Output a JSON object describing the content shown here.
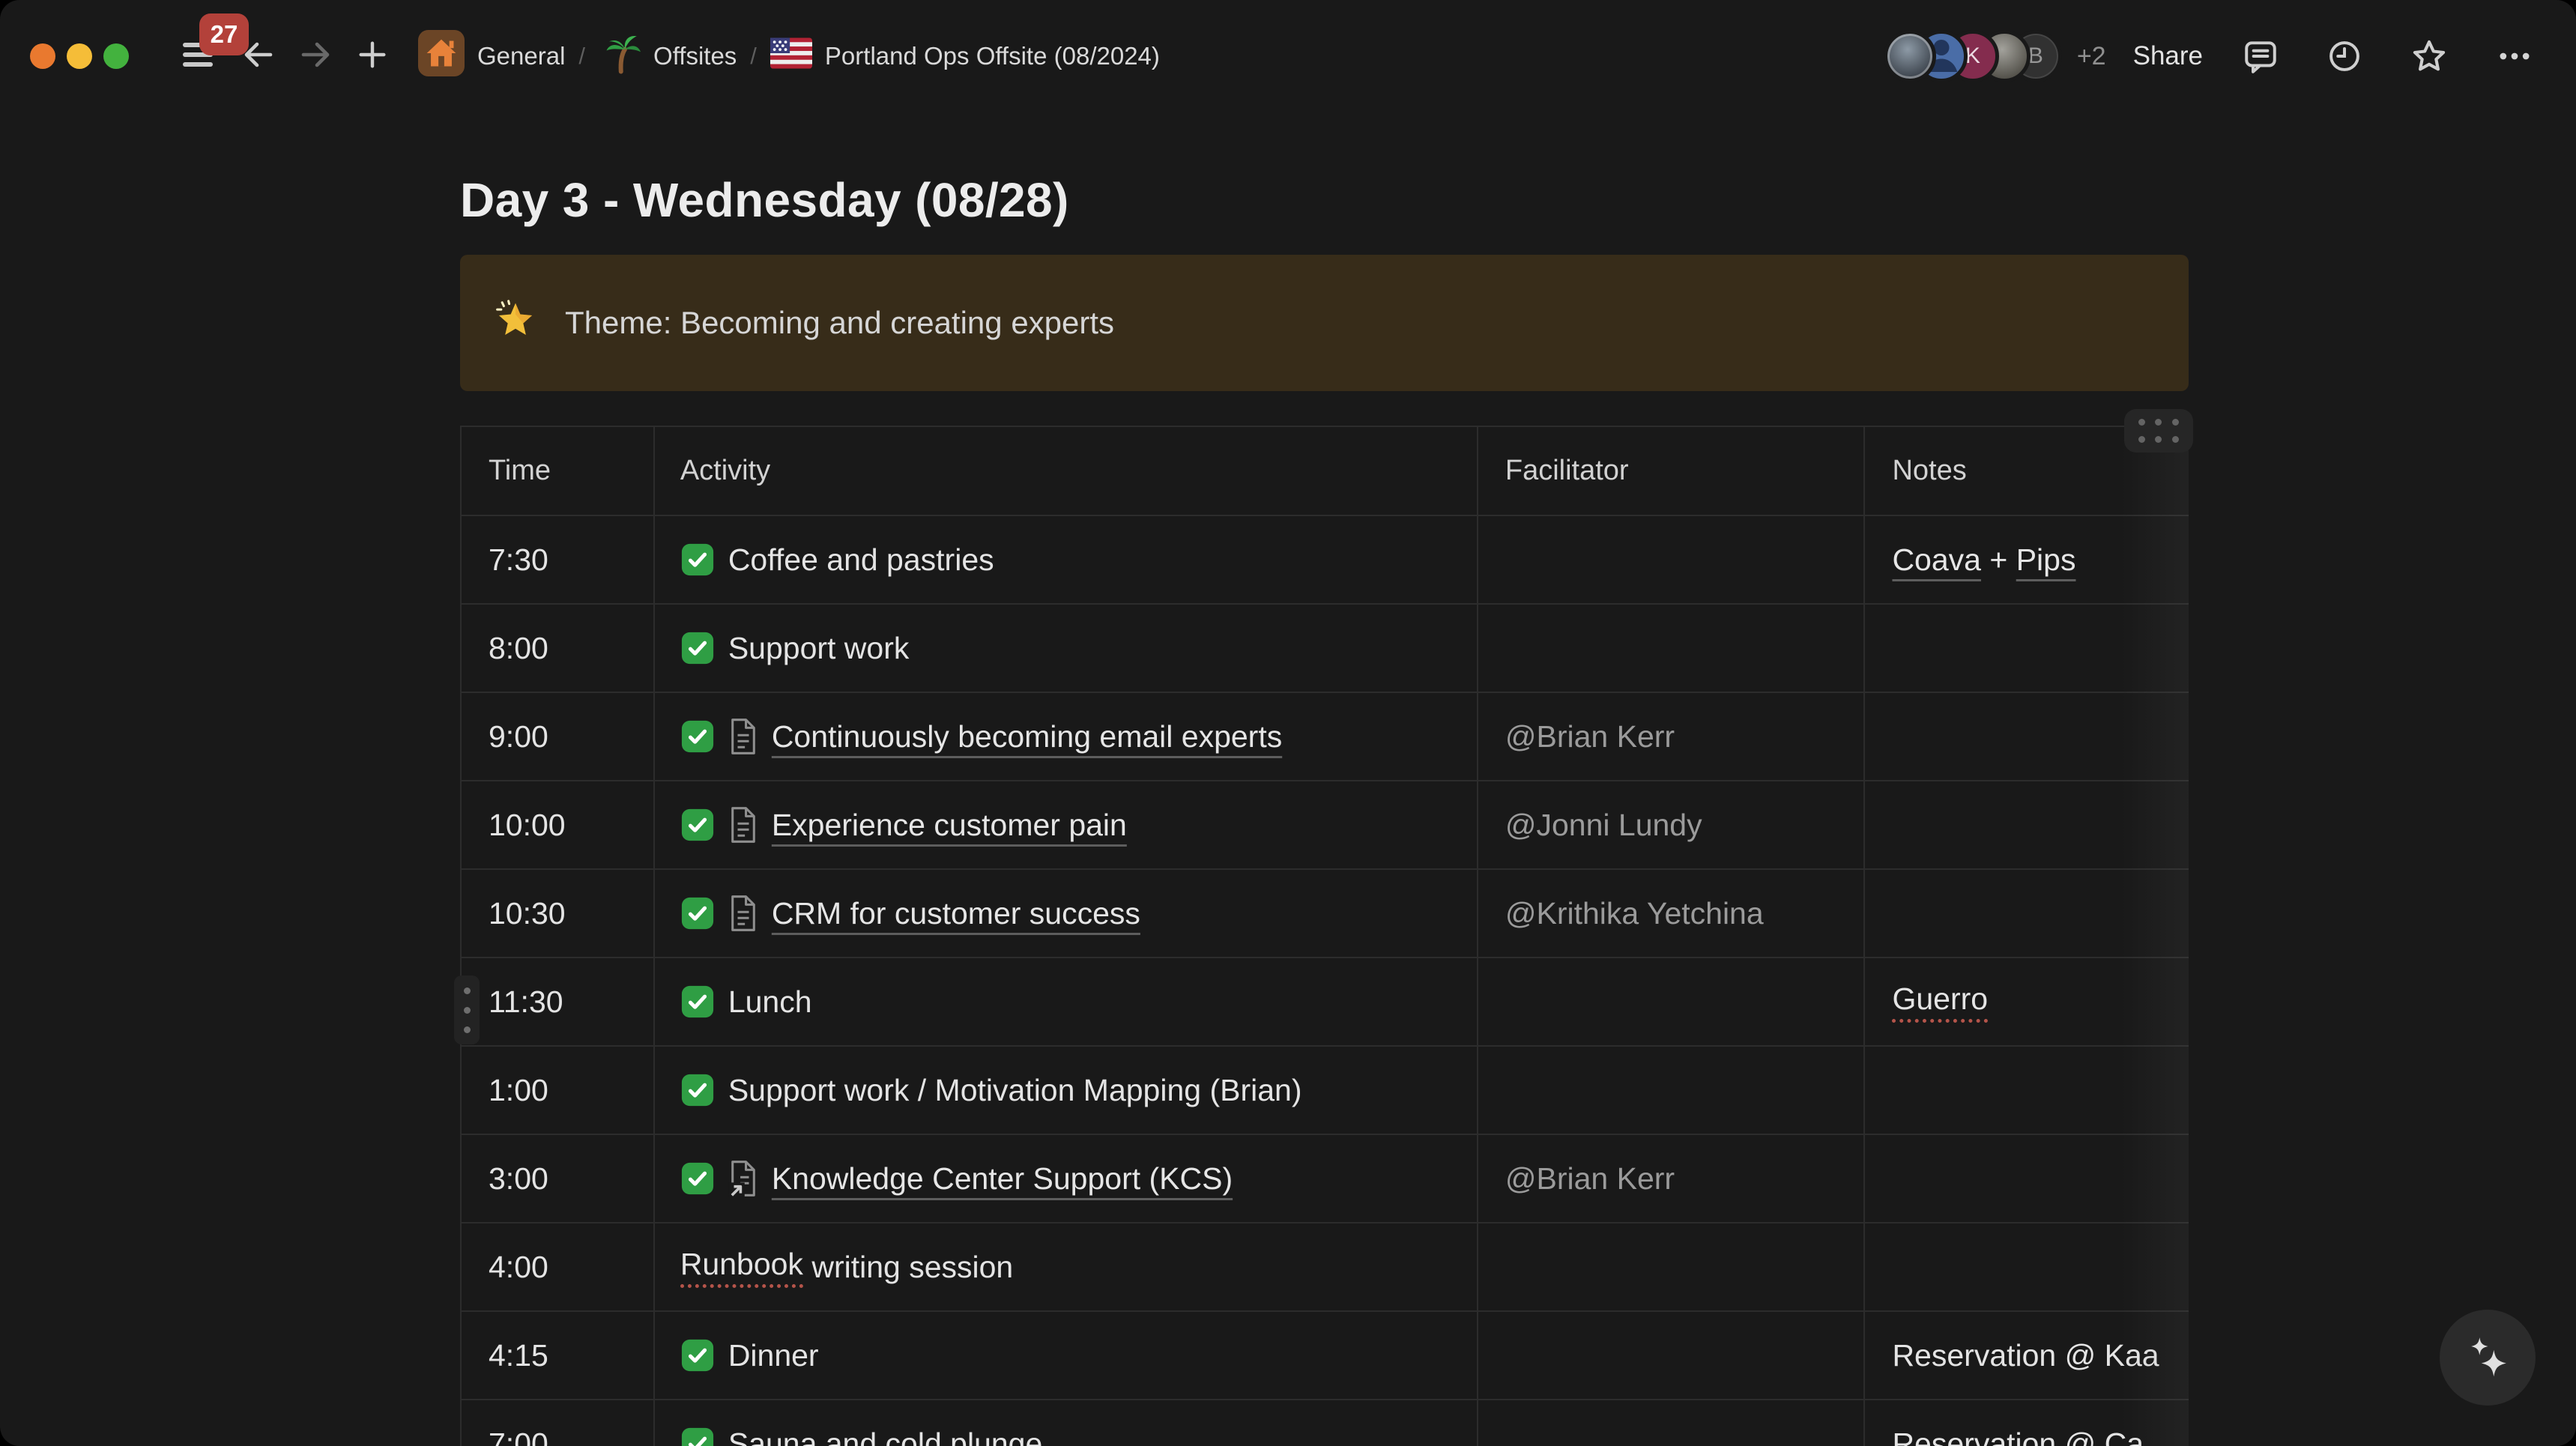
{
  "topbar": {
    "badge_count": "27",
    "separator": "/",
    "breadcrumb": [
      {
        "icon": "home-icon",
        "label": "General"
      },
      {
        "icon": "palm-tree-icon",
        "label": "Offsites"
      },
      {
        "icon": "us-flag-icon",
        "label": "Portland Ops Offsite (08/2024)"
      }
    ],
    "avatars": [
      {
        "type": "photo",
        "name": "avatar-photo-1"
      },
      {
        "type": "icon",
        "name": "avatar-person-generic"
      },
      {
        "type": "initial",
        "initial": "K"
      },
      {
        "type": "photo",
        "name": "avatar-photo-2"
      },
      {
        "type": "initial",
        "initial": "B"
      }
    ],
    "overflow_count": "+2",
    "share_label": "Share",
    "icons": [
      "comments-icon",
      "history-clock-icon",
      "favorite-star-icon",
      "more-ellipsis-icon"
    ]
  },
  "page": {
    "title": "Day 3 - Wednesday (08/28)",
    "callout": {
      "icon": "glowing-star-icon",
      "text": "Theme: Becoming and creating experts"
    }
  },
  "table": {
    "columns": [
      "Time",
      "Activity",
      "Facilitator",
      "Notes"
    ],
    "rows": [
      {
        "time": "7:30",
        "check": true,
        "icon": null,
        "activity": [
          {
            "text": "Coffee and pastries"
          }
        ],
        "facilitator": [],
        "notes": [
          {
            "text": "Coava",
            "link": true
          },
          {
            "text": " + "
          },
          {
            "text": "Pips",
            "link": true
          }
        ]
      },
      {
        "time": "8:00",
        "check": true,
        "icon": null,
        "activity": [
          {
            "text": "Support work"
          }
        ],
        "facilitator": [],
        "notes": []
      },
      {
        "time": "9:00",
        "check": true,
        "icon": "page",
        "activity": [
          {
            "text": "Continuously becoming email experts",
            "link": true
          }
        ],
        "facilitator": [
          {
            "text": "@Brian Kerr",
            "mention": true
          }
        ],
        "notes": []
      },
      {
        "time": "10:00",
        "check": true,
        "icon": "page",
        "activity": [
          {
            "text": "Experience customer pain",
            "link": true
          }
        ],
        "facilitator": [
          {
            "text": "@Jonni Lundy",
            "mention": true
          }
        ],
        "notes": []
      },
      {
        "time": "10:30",
        "check": true,
        "icon": "page",
        "activity": [
          {
            "text": "CRM for customer success",
            "link": true
          }
        ],
        "facilitator": [
          {
            "text": "@Krithika Yetchina",
            "mention": true
          }
        ],
        "notes": []
      },
      {
        "time": "11:30",
        "check": true,
        "icon": null,
        "activity": [
          {
            "text": "Lunch"
          }
        ],
        "facilitator": [],
        "notes": [
          {
            "text": "Guerro",
            "misspelled": true
          }
        ]
      },
      {
        "time": "1:00",
        "check": true,
        "icon": null,
        "activity": [
          {
            "text": "Support work / Motivation Mapping (Brian)"
          }
        ],
        "facilitator": [],
        "notes": []
      },
      {
        "time": "3:00",
        "check": true,
        "icon": "linked-page",
        "activity": [
          {
            "text": "Knowledge Center Support (KCS)",
            "link": true
          }
        ],
        "facilitator": [
          {
            "text": "@Brian Kerr",
            "mention": true
          }
        ],
        "notes": []
      },
      {
        "time": "4:00",
        "check": false,
        "icon": null,
        "activity": [
          {
            "text": "Runbook",
            "misspelled": true
          },
          {
            "text": " writing session"
          }
        ],
        "facilitator": [],
        "notes": []
      },
      {
        "time": "4:15",
        "check": true,
        "icon": null,
        "activity": [
          {
            "text": "Dinner"
          }
        ],
        "facilitator": [],
        "notes": [
          {
            "text": "Reservation @ Kaa"
          }
        ]
      },
      {
        "time": "7:00",
        "check": true,
        "icon": null,
        "activity": [
          {
            "text": "Sauna and cold plunge"
          }
        ],
        "facilitator": [],
        "notes": [
          {
            "text": "Reservation @ Ca"
          }
        ]
      }
    ]
  },
  "colors": {
    "page_bg": "#191919",
    "border": "#2c2c2c",
    "callout_bg": "#372c19",
    "badge_red": "#b3413a",
    "checkbox_green": "#2f9e44",
    "spellcheck_red": "#b5544a",
    "link_underline": "#5d5d5d",
    "mention_gray": "#9b9b9b"
  }
}
